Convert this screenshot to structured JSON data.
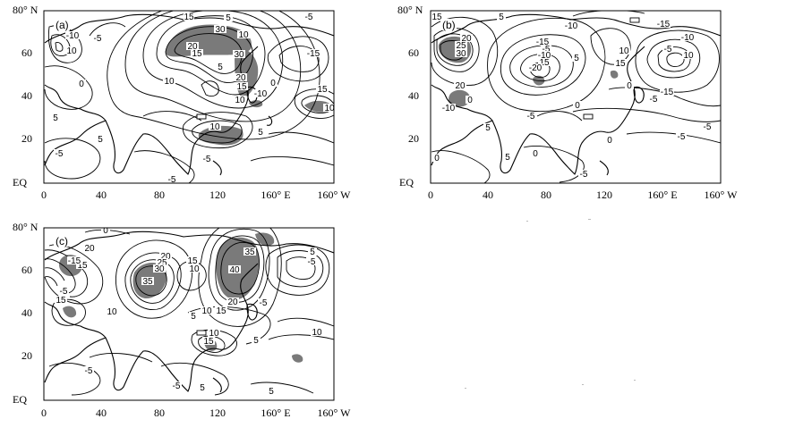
{
  "axes": {
    "y_labels": [
      "80° N",
      "60",
      "40",
      "20",
      "EQ"
    ],
    "x_labels": [
      "0",
      "40",
      "80",
      "120",
      "160° E",
      "160° W"
    ]
  },
  "panels": {
    "a": {
      "label": "(a)",
      "contour_labels": [
        "15",
        "30",
        "20",
        "10",
        "15",
        "5",
        "-10",
        "10",
        "-5",
        "0",
        "-15",
        "-5",
        "30",
        "20",
        "15",
        "10",
        "-10",
        "0",
        "10",
        "15",
        "10",
        "5",
        "10",
        "5",
        "-5",
        "5",
        "-5",
        "5",
        "-5"
      ]
    },
    "b": {
      "label": "(b)",
      "contour_labels": [
        "15",
        "5",
        "-15",
        "-10",
        "25",
        "30",
        "-15",
        "-10",
        "20",
        "-5",
        "-10",
        "15",
        "-20",
        "5",
        "10",
        "-5",
        "10",
        "15",
        "20",
        "-15",
        "0",
        "-5",
        "-5",
        "-10",
        "5",
        "-5",
        "-5",
        "5",
        "0",
        "0",
        "-5",
        "0",
        "0",
        "0"
      ]
    },
    "c": {
      "label": "(c)",
      "contour_labels": [
        "0",
        "20",
        "15",
        "20",
        "25",
        "-15",
        "30",
        "15",
        "10",
        "35",
        "35",
        "40",
        "-5",
        "20",
        "-5",
        "5",
        "10",
        "15",
        "-5",
        "15",
        "10",
        "5",
        "10",
        "15",
        "10",
        "5",
        "-5",
        "5",
        "-5",
        "5"
      ]
    }
  },
  "colors": {
    "shade": "#7a7a7a",
    "line": "#000000"
  }
}
